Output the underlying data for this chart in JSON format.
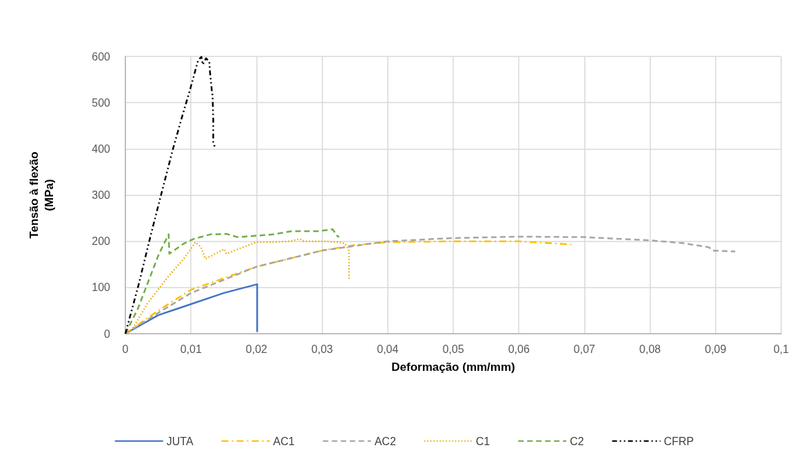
{
  "chart_data": {
    "type": "line",
    "xlabel": "Deformação (mm/mm)",
    "ylabel": "Tensão à flexão\n(MPa)",
    "xlim": [
      0,
      0.1
    ],
    "ylim": [
      0,
      600
    ],
    "xticks": [
      0,
      {
        "value": 0.01,
        "label": "0,01"
      },
      {
        "value": 0.02,
        "label": "0,02"
      },
      {
        "value": 0.03,
        "label": "0,03"
      },
      {
        "value": 0.04,
        "label": "0,04"
      },
      {
        "value": 0.05,
        "label": "0,05"
      },
      {
        "value": 0.06,
        "label": "0,06"
      },
      {
        "value": 0.07,
        "label": "0,07"
      },
      {
        "value": 0.08,
        "label": "0,08"
      },
      {
        "value": 0.09,
        "label": "0,09"
      },
      {
        "value": 0.1,
        "label": "0,1"
      }
    ],
    "yticks": [
      0,
      100,
      200,
      300,
      400,
      500,
      600
    ],
    "grid": true,
    "legend": "bottom",
    "marker": "none",
    "series": [
      {
        "name": "JUTA",
        "color": "#4472c4",
        "line_style": "solid",
        "x": [
          0,
          0.005,
          0.01,
          0.015,
          0.0201,
          0.0201
        ],
        "values": [
          0,
          40,
          64,
          88,
          107,
          4
        ]
      },
      {
        "name": "AC1",
        "color": "#ffc000",
        "line_style": "dashdot",
        "x": [
          0,
          0.005,
          0.01,
          0.02,
          0.03,
          0.035,
          0.04,
          0.05,
          0.06,
          0.068
        ],
        "values": [
          0,
          50,
          95,
          145,
          180,
          192,
          198,
          200,
          200,
          193
        ]
      },
      {
        "name": "AC2",
        "color": "#a5a5a5",
        "line_style": "dashed",
        "x": [
          0,
          0.005,
          0.01,
          0.02,
          0.03,
          0.035,
          0.04,
          0.05,
          0.06,
          0.07,
          0.08,
          0.085,
          0.089,
          0.0895,
          0.093
        ],
        "values": [
          0,
          45,
          88,
          145,
          180,
          190,
          200,
          207,
          210,
          209,
          202,
          196,
          187,
          180,
          178
        ]
      },
      {
        "name": "C1",
        "color": "#e6a800",
        "line_style": "dotted",
        "x": [
          0,
          0.0011,
          0.0034,
          0.0065,
          0.0089,
          0.0107,
          0.0115,
          0.0122,
          0.0151,
          0.0154,
          0.0199,
          0.0226,
          0.025,
          0.0266,
          0.0272,
          0.0302,
          0.0326,
          0.0335,
          0.0341,
          0.0341
        ],
        "values": [
          0,
          11,
          66,
          123,
          162,
          198,
          188,
          162,
          183,
          173,
          198,
          198,
          200,
          205,
          200,
          200,
          198,
          195,
          179,
          119
        ]
      },
      {
        "name": "C2",
        "color": "#70ad47",
        "line_style": "dashed",
        "x": [
          0,
          0.0019,
          0.0051,
          0.0066,
          0.0067,
          0.0089,
          0.0104,
          0.013,
          0.0154,
          0.0171,
          0.0226,
          0.0254,
          0.0295,
          0.0316,
          0.0323,
          0.0326
        ],
        "values": [
          0,
          54,
          172,
          215,
          173,
          195,
          205,
          215,
          216,
          209,
          215,
          222,
          222,
          226,
          212,
          209
        ]
      },
      {
        "name": "CFRP",
        "color": "#000000",
        "line_style": "dashdotdot",
        "x": [
          0,
          0.002,
          0.0039,
          0.0058,
          0.0073,
          0.0086,
          0.0099,
          0.0111,
          0.0116,
          0.0118,
          0.0123,
          0.0128,
          0.0129,
          0.0132,
          0.0133,
          0.0134,
          0.0134,
          0.0137
        ],
        "values": [
          0,
          105,
          215,
          320,
          402,
          467,
          530,
          592,
          599,
          582,
          596,
          589,
          567,
          524,
          516,
          463,
          415,
          401
        ]
      }
    ]
  }
}
